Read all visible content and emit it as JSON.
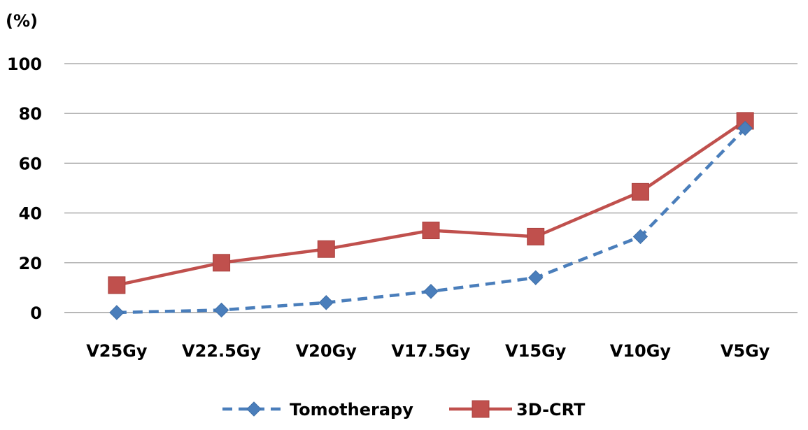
{
  "chart_data": {
    "type": "line",
    "unit_label": "(%)",
    "categories": [
      "V25Gy",
      "V22.5Gy",
      "V20Gy",
      "V17.5Gy",
      "V15Gy",
      "V10Gy",
      "V5Gy"
    ],
    "series": [
      {
        "name": "Tomotherapy",
        "color": "#4a7ebb",
        "line_style": "dashed",
        "marker": "diamond",
        "values": [
          0,
          1,
          4,
          8.5,
          14,
          30.5,
          74
        ]
      },
      {
        "name": "3D-CRT",
        "color": "#c0504d",
        "line_style": "solid",
        "marker": "square",
        "values": [
          11,
          20,
          25.5,
          33,
          30.5,
          48.5,
          77
        ]
      }
    ],
    "ylim": [
      0,
      100
    ],
    "yticks": [
      0,
      20,
      40,
      60,
      80,
      100
    ],
    "grid": true,
    "legend_position": "bottom"
  }
}
